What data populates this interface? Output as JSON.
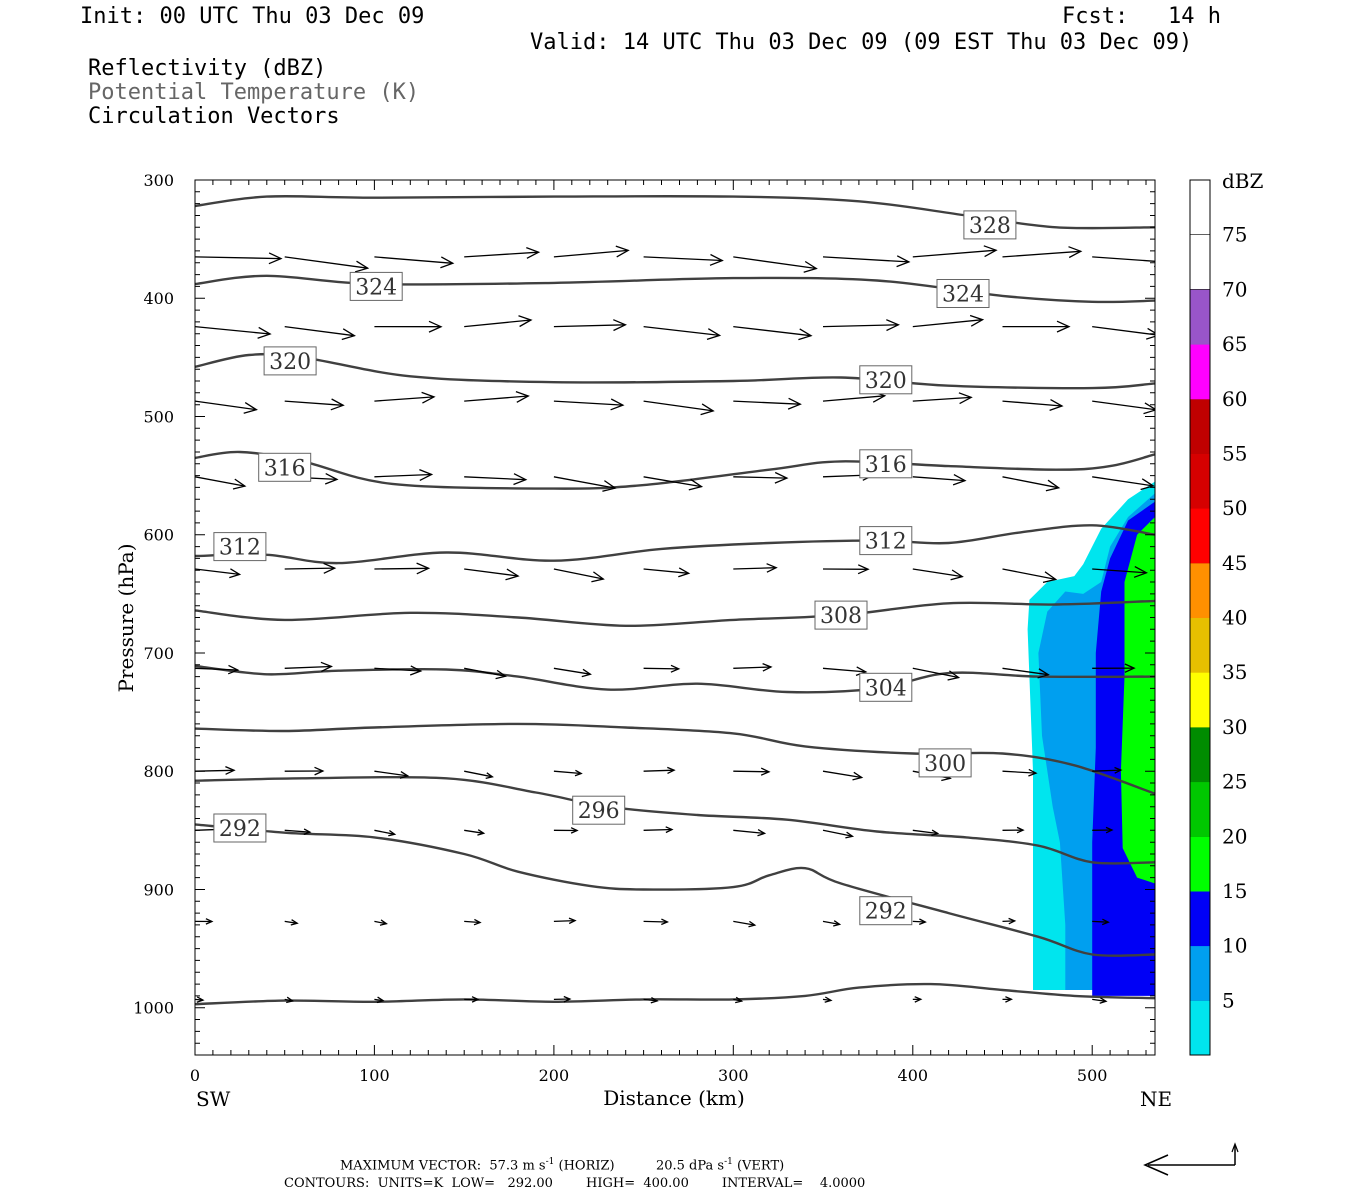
{
  "header": {
    "init": "Init: 00 UTC Thu 03 Dec 09",
    "fcst": "Fcst:   14 h",
    "valid": "Valid: 14 UTC Thu 03 Dec 09 (09 EST Thu 03 Dec 09)",
    "field1": "Reflectivity (dBZ)",
    "field2": "Potential Temperature (K)",
    "field3": "Circulation Vectors"
  },
  "footer": {
    "line1a": "MAXIMUM VECTOR:  57.3 m s",
    "line1a_sup": "-1",
    "line1b": " (HORIZ)          20.5 dPa s",
    "line1b_sup": "-1",
    "line1c": " (VERT)",
    "line2": "CONTOURS:  UNITS=K  LOW=   292.00        HIGH=  400.00        INTERVAL=    4.0000"
  },
  "colors": {
    "theta": "#404040",
    "vector": "#000000",
    "dbz_5": "#00e5ee",
    "dbz_10": "#009fef",
    "dbz_15": "#0000f6",
    "dbz_20": "#00ff00",
    "dbz_25": "#00c800",
    "dbz_30": "#008c00",
    "dbz_35": "#ffff00",
    "dbz_40": "#e7c000",
    "dbz_45": "#ff9000",
    "dbz_50": "#ff0000",
    "dbz_55": "#d60000",
    "dbz_60": "#c00000",
    "dbz_65": "#ff00ff",
    "dbz_70": "#9955c9"
  },
  "chart_data": {
    "type": "cross-section",
    "xlabel": "Distance (km)",
    "ylabel": "Pressure (hPa)",
    "xlim": [
      0,
      535
    ],
    "ylim": [
      1040,
      300
    ],
    "xticks": [
      0,
      100,
      200,
      300,
      400,
      500
    ],
    "yticks": [
      300,
      400,
      500,
      600,
      700,
      800,
      900,
      1000
    ],
    "left_end_label": "SW",
    "right_end_label": "NE",
    "colorbar": {
      "title": "dBZ",
      "levels": [
        5,
        10,
        15,
        20,
        25,
        30,
        35,
        40,
        45,
        50,
        55,
        60,
        65,
        70,
        75
      ]
    },
    "contour_labels": [
      {
        "value": "328",
        "x": 443,
        "p": 338
      },
      {
        "value": "324",
        "x": 101,
        "p": 390
      },
      {
        "value": "324",
        "x": 428,
        "p": 396
      },
      {
        "value": "320",
        "x": 53,
        "p": 453
      },
      {
        "value": "320",
        "x": 385,
        "p": 469
      },
      {
        "value": "316",
        "x": 50,
        "p": 543
      },
      {
        "value": "316",
        "x": 385,
        "p": 540
      },
      {
        "value": "312",
        "x": 25,
        "p": 610
      },
      {
        "value": "312",
        "x": 385,
        "p": 605
      },
      {
        "value": "308",
        "x": 360,
        "p": 668
      },
      {
        "value": "304",
        "x": 385,
        "p": 729
      },
      {
        "value": "300",
        "x": 418,
        "p": 793
      },
      {
        "value": "296",
        "x": 225,
        "p": 833
      },
      {
        "value": "292",
        "x": 25,
        "p": 848
      },
      {
        "value": "292",
        "x": 385,
        "p": 918
      }
    ],
    "theta_contours": [
      [
        [
          0,
          322
        ],
        [
          40,
          314
        ],
        [
          100,
          315
        ],
        [
          200,
          314
        ],
        [
          300,
          314
        ],
        [
          370,
          318
        ],
        [
          430,
          330
        ],
        [
          480,
          340
        ],
        [
          535,
          340
        ]
      ],
      [
        [
          0,
          388
        ],
        [
          40,
          381
        ],
        [
          100,
          388
        ],
        [
          200,
          387
        ],
        [
          300,
          383
        ],
        [
          380,
          385
        ],
        [
          450,
          398
        ],
        [
          500,
          403
        ],
        [
          535,
          402
        ]
      ],
      [
        [
          0,
          458
        ],
        [
          30,
          448
        ],
        [
          60,
          450
        ],
        [
          120,
          466
        ],
        [
          200,
          471
        ],
        [
          300,
          470
        ],
        [
          360,
          467
        ],
        [
          420,
          474
        ],
        [
          500,
          476
        ],
        [
          535,
          472
        ]
      ],
      [
        [
          0,
          535
        ],
        [
          25,
          530
        ],
        [
          60,
          538
        ],
        [
          110,
          557
        ],
        [
          200,
          561
        ],
        [
          250,
          558
        ],
        [
          320,
          545
        ],
        [
          360,
          538
        ],
        [
          420,
          542
        ],
        [
          480,
          545
        ],
        [
          510,
          542
        ],
        [
          535,
          532
        ]
      ],
      [
        [
          0,
          618
        ],
        [
          40,
          617
        ],
        [
          80,
          624
        ],
        [
          140,
          615
        ],
        [
          200,
          622
        ],
        [
          260,
          612
        ],
        [
          320,
          607
        ],
        [
          380,
          605
        ],
        [
          420,
          607
        ],
        [
          460,
          598
        ],
        [
          500,
          592
        ],
        [
          535,
          600
        ]
      ],
      [
        [
          0,
          664
        ],
        [
          50,
          672
        ],
        [
          120,
          666
        ],
        [
          180,
          670
        ],
        [
          240,
          677
        ],
        [
          300,
          672
        ],
        [
          360,
          668
        ],
        [
          420,
          658
        ],
        [
          480,
          659
        ],
        [
          535,
          656
        ]
      ],
      [
        [
          0,
          711
        ],
        [
          40,
          718
        ],
        [
          80,
          715
        ],
        [
          140,
          714
        ],
        [
          180,
          720
        ],
        [
          230,
          731
        ],
        [
          280,
          726
        ],
        [
          330,
          733
        ],
        [
          380,
          730
        ],
        [
          420,
          717
        ],
        [
          470,
          720
        ],
        [
          535,
          720
        ]
      ],
      [
        [
          0,
          764
        ],
        [
          50,
          766
        ],
        [
          100,
          763
        ],
        [
          180,
          760
        ],
        [
          240,
          763
        ],
        [
          300,
          768
        ],
        [
          340,
          779
        ],
        [
          400,
          785
        ],
        [
          450,
          785
        ],
        [
          490,
          795
        ],
        [
          535,
          819
        ]
      ],
      [
        [
          0,
          808
        ],
        [
          60,
          806
        ],
        [
          140,
          806
        ],
        [
          190,
          818
        ],
        [
          230,
          830
        ],
        [
          280,
          837
        ],
        [
          330,
          841
        ],
        [
          380,
          851
        ],
        [
          430,
          856
        ],
        [
          470,
          863
        ],
        [
          500,
          877
        ],
        [
          535,
          877
        ]
      ],
      [
        [
          0,
          845
        ],
        [
          50,
          852
        ],
        [
          100,
          856
        ],
        [
          150,
          870
        ],
        [
          180,
          885
        ],
        [
          220,
          897
        ],
        [
          250,
          900
        ],
        [
          300,
          898
        ],
        [
          320,
          888
        ],
        [
          340,
          882
        ],
        [
          360,
          895
        ],
        [
          420,
          920
        ],
        [
          470,
          940
        ],
        [
          500,
          955
        ],
        [
          535,
          955
        ]
      ],
      [
        [
          0,
          997
        ],
        [
          50,
          994
        ],
        [
          100,
          995
        ],
        [
          150,
          993
        ],
        [
          200,
          995
        ],
        [
          250,
          993
        ],
        [
          300,
          993
        ],
        [
          340,
          990
        ],
        [
          370,
          983
        ],
        [
          410,
          980
        ],
        [
          450,
          985
        ],
        [
          490,
          990
        ],
        [
          535,
          992
        ]
      ]
    ],
    "dbz_regions": [
      {
        "dbz": 5,
        "poly": [
          [
            535,
            555
          ],
          [
            520,
            570
          ],
          [
            505,
            595
          ],
          [
            495,
            625
          ],
          [
            490,
            635
          ],
          [
            475,
            640
          ],
          [
            465,
            655
          ],
          [
            464,
            680
          ],
          [
            465,
            720
          ],
          [
            467,
            800
          ],
          [
            467,
            985
          ],
          [
            535,
            985
          ]
        ]
      },
      {
        "dbz": 10,
        "poly": [
          [
            535,
            565
          ],
          [
            520,
            585
          ],
          [
            510,
            610
          ],
          [
            505,
            640
          ],
          [
            495,
            650
          ],
          [
            485,
            648
          ],
          [
            475,
            665
          ],
          [
            470,
            700
          ],
          [
            472,
            770
          ],
          [
            478,
            830
          ],
          [
            482,
            860
          ],
          [
            485,
            930
          ],
          [
            485,
            985
          ],
          [
            535,
            985
          ]
        ]
      },
      {
        "dbz": 15,
        "poly": [
          [
            535,
            572
          ],
          [
            520,
            588
          ],
          [
            510,
            620
          ],
          [
            505,
            648
          ],
          [
            502,
            700
          ],
          [
            502,
            780
          ],
          [
            500,
            860
          ],
          [
            500,
            920
          ],
          [
            500,
            990
          ],
          [
            535,
            990
          ]
        ]
      },
      {
        "dbz": 20,
        "poly": [
          [
            535,
            585
          ],
          [
            525,
            600
          ],
          [
            518,
            640
          ],
          [
            518,
            720
          ],
          [
            516,
            800
          ],
          [
            517,
            865
          ],
          [
            525,
            890
          ],
          [
            535,
            895
          ]
        ]
      }
    ],
    "vector_levels": [
      365,
      424,
      487,
      551,
      629,
      713,
      800,
      850,
      927,
      993
    ],
    "vector_xs": [
      0,
      50,
      100,
      150,
      200,
      250,
      300,
      350,
      400,
      450,
      500
    ],
    "reference_vector": {
      "horiz": 57.3,
      "vert": 20.5
    }
  }
}
